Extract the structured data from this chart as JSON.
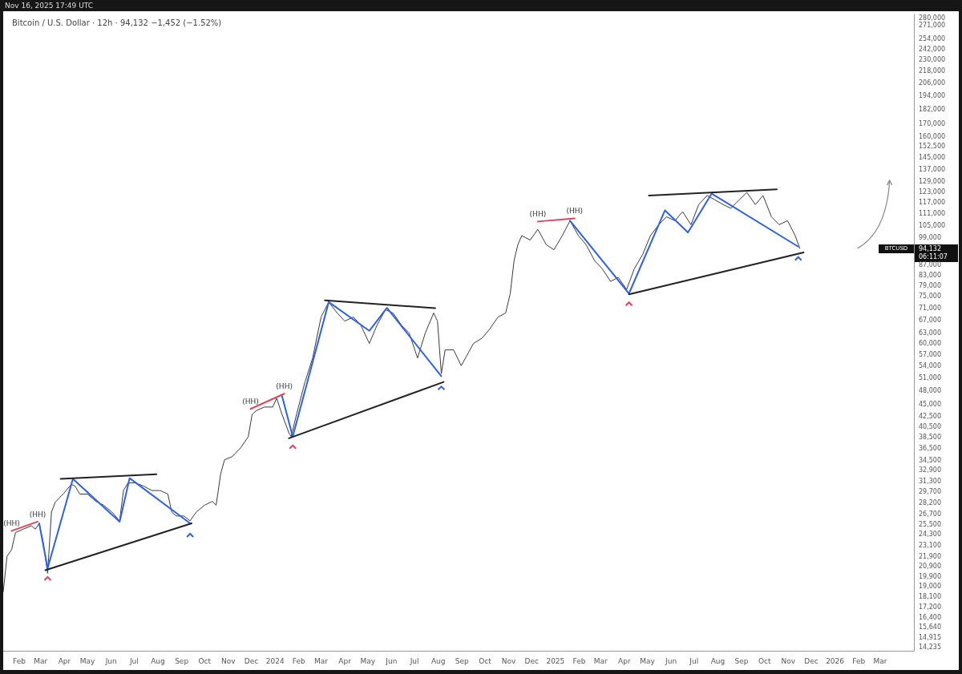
{
  "chart_data": {
    "type": "line",
    "title": "Bitcoin / U.S. Dollar · 12h · 94,132 −1,452 (−1.52%)",
    "annotations": [
      "Nov 16, 2025 17:49 UTC",
      {
        "text": "(HH)",
        "x": "2023-01-22",
        "y": 24700
      },
      {
        "text": "(HH)",
        "x": "2023-02-25",
        "y": 25800
      },
      {
        "text": "(HH)",
        "x": "2023-11-30",
        "y": 44000
      },
      {
        "text": "(HH)",
        "x": "2024-01-13",
        "y": 47300
      },
      {
        "text": "(HH)",
        "x": "2024-12-09",
        "y": 106900
      },
      {
        "text": "(HH)",
        "x": "2025-01-26",
        "y": 108500
      },
      "BTCUSD",
      "94,132",
      "06:11:07"
    ],
    "grid": false,
    "marker": "none",
    "line_style": "solid",
    "log": "y",
    "xlim": [
      "2023-01-11",
      "2026-04-14"
    ],
    "xticks": [
      {
        "value": "2023-02",
        "label": "Feb"
      },
      {
        "value": "2023-03",
        "label": "Mar"
      },
      {
        "value": "2023-04",
        "label": "Apr"
      },
      {
        "value": "2023-05",
        "label": "May"
      },
      {
        "value": "2023-06",
        "label": "Jun"
      },
      {
        "value": "2023-07",
        "label": "Jul"
      },
      {
        "value": "2023-08",
        "label": "Aug"
      },
      {
        "value": "2023-09",
        "label": "Sep"
      },
      {
        "value": "2023-10",
        "label": "Oct"
      },
      {
        "value": "2023-11",
        "label": "Nov"
      },
      {
        "value": "2023-12",
        "label": "Dec"
      },
      {
        "value": "2024-01",
        "label": "2024"
      },
      {
        "value": "2024-02",
        "label": "Feb"
      },
      {
        "value": "2024-03",
        "label": "Mar"
      },
      {
        "value": "2024-04",
        "label": "Apr"
      },
      {
        "value": "2024-05",
        "label": "May"
      },
      {
        "value": "2024-06",
        "label": "Jun"
      },
      {
        "value": "2024-07",
        "label": "Jul"
      },
      {
        "value": "2024-08",
        "label": "Aug"
      },
      {
        "value": "2024-09",
        "label": "Sep"
      },
      {
        "value": "2024-10",
        "label": "Oct"
      },
      {
        "value": "2024-11",
        "label": "Nov"
      },
      {
        "value": "2024-12",
        "label": "Dec"
      },
      {
        "value": "2025-01",
        "label": "2025"
      },
      {
        "value": "2025-02",
        "label": "Feb"
      },
      {
        "value": "2025-03",
        "label": "Mar"
      },
      {
        "value": "2025-04",
        "label": "Apr"
      },
      {
        "value": "2025-05",
        "label": "May"
      },
      {
        "value": "2025-06",
        "label": "Jun"
      },
      {
        "value": "2025-07",
        "label": "Jul"
      },
      {
        "value": "2025-08",
        "label": "Aug"
      },
      {
        "value": "2025-09",
        "label": "Sep"
      },
      {
        "value": "2025-10",
        "label": "Oct"
      },
      {
        "value": "2025-11",
        "label": "Nov"
      },
      {
        "value": "2025-12",
        "label": "Dec"
      },
      {
        "value": "2026-01",
        "label": "2026"
      },
      {
        "value": "2026-02",
        "label": "Feb"
      },
      {
        "value": "2026-03",
        "label": "Mar"
      }
    ],
    "ylim": [
      14000,
      285000
    ],
    "yticks": [
      {
        "value": 280000,
        "label": "280,000"
      },
      {
        "value": 271000,
        "label": "271,000"
      },
      {
        "value": 254000,
        "label": "254,000"
      },
      {
        "value": 242000,
        "label": "242,000"
      },
      {
        "value": 230000,
        "label": "230,000"
      },
      {
        "value": 218000,
        "label": "218,000"
      },
      {
        "value": 206000,
        "label": "206,000"
      },
      {
        "value": 194000,
        "label": "194,000"
      },
      {
        "value": 182000,
        "label": "182,000"
      },
      {
        "value": 170000,
        "label": "170,000"
      },
      {
        "value": 160000,
        "label": "160,000"
      },
      {
        "value": 152500,
        "label": "152,500"
      },
      {
        "value": 145000,
        "label": "145,000"
      },
      {
        "value": 137000,
        "label": "137,000"
      },
      {
        "value": 129000,
        "label": "129,000"
      },
      {
        "value": 123000,
        "label": "123,000"
      },
      {
        "value": 117000,
        "label": "117,000"
      },
      {
        "value": 111000,
        "label": "111,000"
      },
      {
        "value": 105000,
        "label": "105,000"
      },
      {
        "value": 99000,
        "label": "99,000"
      },
      {
        "value": 87000,
        "label": "87,000"
      },
      {
        "value": 83000,
        "label": "83,000"
      },
      {
        "value": 79000,
        "label": "79,000"
      },
      {
        "value": 75000,
        "label": "75,000"
      },
      {
        "value": 71000,
        "label": "71,000"
      },
      {
        "value": 67000,
        "label": "67,000"
      },
      {
        "value": 63000,
        "label": "63,000"
      },
      {
        "value": 60000,
        "label": "60,000"
      },
      {
        "value": 57000,
        "label": "57,000"
      },
      {
        "value": 54000,
        "label": "54,000"
      },
      {
        "value": 51000,
        "label": "51,000"
      },
      {
        "value": 48000,
        "label": "48,000"
      },
      {
        "value": 45000,
        "label": "45,000"
      },
      {
        "value": 42500,
        "label": "42,500"
      },
      {
        "value": 40500,
        "label": "40,500"
      },
      {
        "value": 38500,
        "label": "38,500"
      },
      {
        "value": 36500,
        "label": "36,500"
      },
      {
        "value": 34500,
        "label": "34,500"
      },
      {
        "value": 32900,
        "label": "32,900"
      },
      {
        "value": 31300,
        "label": "31,300"
      },
      {
        "value": 29700,
        "label": "29,700"
      },
      {
        "value": 28200,
        "label": "28,200"
      },
      {
        "value": 26700,
        "label": "26,700"
      },
      {
        "value": 25500,
        "label": "25,500"
      },
      {
        "value": 24300,
        "label": "24,300"
      },
      {
        "value": 23100,
        "label": "23,100"
      },
      {
        "value": 21900,
        "label": "21,900"
      },
      {
        "value": 20900,
        "label": "20,900"
      },
      {
        "value": 19900,
        "label": "19,900"
      },
      {
        "value": 19000,
        "label": "19,000"
      },
      {
        "value": 18100,
        "label": "18,100"
      },
      {
        "value": 17200,
        "label": "17,200"
      },
      {
        "value": 16400,
        "label": "16,400"
      },
      {
        "value": 15640,
        "label": "15,640"
      },
      {
        "value": 14915,
        "label": "14,915"
      },
      {
        "value": 14235,
        "label": "14,235"
      }
    ],
    "series": [
      {
        "color": "#3a3a3a",
        "x": [
          "2023-01-11",
          "2023-01-16",
          "2023-01-22",
          "2023-01-27",
          "2023-02-06",
          "2023-02-17",
          "2023-02-22",
          "2023-02-27",
          "2023-03-04",
          "2023-03-10",
          "2023-03-15",
          "2023-03-20",
          "2023-03-31",
          "2023-04-10",
          "2023-04-15",
          "2023-04-21",
          "2023-05-01",
          "2023-05-12",
          "2023-05-22",
          "2023-06-02",
          "2023-06-12",
          "2023-06-17",
          "2023-06-23",
          "2023-07-03",
          "2023-07-14",
          "2023-07-24",
          "2023-08-04",
          "2023-08-14",
          "2023-08-19",
          "2023-08-25",
          "2023-09-04",
          "2023-09-12",
          "2023-09-20",
          "2023-10-01",
          "2023-10-11",
          "2023-10-16",
          "2023-10-22",
          "2023-10-27",
          "2023-11-06",
          "2023-11-17",
          "2023-11-27",
          "2023-12-02",
          "2023-12-08",
          "2023-12-18",
          "2023-12-29",
          "2024-01-03",
          "2024-01-10",
          "2024-01-19",
          "2024-01-22",
          "2024-01-29",
          "2024-02-09",
          "2024-02-19",
          "2024-03-01",
          "2024-03-11",
          "2024-03-22",
          "2024-04-01",
          "2024-04-12",
          "2024-04-22",
          "2024-05-03",
          "2024-05-13",
          "2024-05-24",
          "2024-06-03",
          "2024-06-14",
          "2024-06-24",
          "2024-07-05",
          "2024-07-15",
          "2024-07-26",
          "2024-07-31",
          "2024-08-05",
          "2024-08-10",
          "2024-08-21",
          "2024-08-31",
          "2024-09-16",
          "2024-09-27",
          "2024-10-07",
          "2024-10-18",
          "2024-10-28",
          "2024-11-03",
          "2024-11-08",
          "2024-11-13",
          "2024-11-18",
          "2024-11-29",
          "2024-12-09",
          "2024-12-20",
          "2024-12-30",
          "2025-01-10",
          "2025-01-20",
          "2025-01-31",
          "2025-02-10",
          "2025-02-21",
          "2025-03-03",
          "2025-03-14",
          "2025-03-24",
          "2025-04-04",
          "2025-04-14",
          "2025-04-25",
          "2025-05-05",
          "2025-05-16",
          "2025-05-26",
          "2025-06-06",
          "2025-06-16",
          "2025-06-27",
          "2025-07-07",
          "2025-07-18",
          "2025-07-28",
          "2025-08-08",
          "2025-08-18",
          "2025-08-29",
          "2025-09-08",
          "2025-09-19",
          "2025-09-29",
          "2025-10-10",
          "2025-10-20",
          "2025-10-31",
          "2025-11-10",
          "2025-11-16"
        ],
        "values": [
          18500,
          21900,
          22600,
          24500,
          24900,
          25300,
          24900,
          25600,
          23500,
          20200,
          27000,
          28300,
          29500,
          30800,
          30500,
          29400,
          29400,
          28400,
          27900,
          27000,
          25900,
          29900,
          31000,
          31000,
          30500,
          29900,
          29900,
          29400,
          27000,
          26500,
          26500,
          25900,
          27000,
          27900,
          28400,
          27900,
          32400,
          34600,
          35100,
          36600,
          38600,
          42900,
          43700,
          44400,
          44400,
          46300,
          42900,
          39300,
          38600,
          42900,
          50000,
          56000,
          68000,
          73000,
          69300,
          66700,
          68000,
          65400,
          60000,
          65400,
          70400,
          69300,
          65400,
          63000,
          56000,
          63000,
          69300,
          66700,
          52000,
          58200,
          58200,
          54000,
          60000,
          61500,
          64200,
          68000,
          69300,
          76000,
          88900,
          95800,
          100000,
          97900,
          103000,
          95800,
          93500,
          100000,
          107300,
          100000,
          95800,
          88900,
          85500,
          80500,
          82000,
          77500,
          85500,
          91500,
          100000,
          105300,
          109300,
          107300,
          112000,
          105300,
          115800,
          120900,
          118500,
          115800,
          113800,
          118500,
          122700,
          115800,
          120900,
          109300,
          105300,
          107300,
          100000,
          94132
        ]
      },
      {
        "color": "#2f62e0",
        "x": [
          "2023-02-27",
          "2023-03-10",
          "2023-04-12",
          "2023-06-12",
          "2023-06-25",
          "2023-09-12"
        ],
        "values": [
          25600,
          20700,
          31600,
          25800,
          31700,
          25600
        ]
      },
      {
        "color": "#2f62e0",
        "x": [
          "2024-01-10",
          "2024-01-24",
          "2024-03-11",
          "2024-05-03",
          "2024-05-26",
          "2024-08-05"
        ],
        "values": [
          46800,
          38600,
          73000,
          63700,
          71000,
          51400
        ]
      },
      {
        "color": "#2f62e0",
        "x": [
          "2025-01-20",
          "2025-04-07",
          "2025-05-24",
          "2025-06-23",
          "2025-07-24",
          "2025-11-14"
        ],
        "values": [
          107300,
          76000,
          112700,
          101500,
          122000,
          94900
        ]
      },
      {
        "color": "#222222",
        "x": [
          "2023-03-07",
          "2023-09-14"
        ],
        "values": [
          20500,
          25600
        ]
      },
      {
        "color": "#222222",
        "x": [
          "2023-03-27",
          "2023-07-30"
        ],
        "values": [
          31600,
          32300
        ]
      },
      {
        "color": "#222222",
        "x": [
          "2024-01-19",
          "2024-08-08"
        ],
        "values": [
          38300,
          50000
        ]
      },
      {
        "color": "#222222",
        "x": [
          "2024-03-06",
          "2024-07-28"
        ],
        "values": [
          73600,
          70900
        ]
      },
      {
        "color": "#222222",
        "x": [
          "2025-04-07",
          "2025-11-21"
        ],
        "values": [
          75700,
          92300
        ]
      },
      {
        "color": "#222222",
        "x": [
          "2025-05-03",
          "2025-10-17"
        ],
        "values": [
          120900,
          124500
        ]
      },
      {
        "color": "#e0445a",
        "x": [
          "2023-01-22",
          "2023-02-25"
        ],
        "values": [
          24700,
          25800
        ]
      },
      {
        "color": "#e0445a",
        "x": [
          "2023-11-30",
          "2024-01-13"
        ],
        "values": [
          44000,
          47300
        ]
      },
      {
        "color": "#e0445a",
        "x": [
          "2024-12-09",
          "2025-01-26"
        ],
        "values": [
          106900,
          108500
        ]
      }
    ]
  }
}
